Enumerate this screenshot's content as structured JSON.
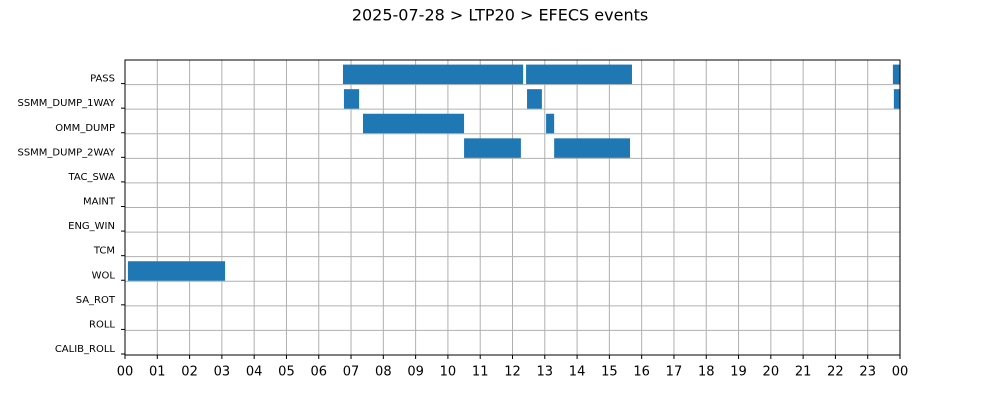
{
  "chart_data": {
    "type": "timeline",
    "title": "2025-07-28 > LTP20 > EFECS events",
    "color": "#1f77b4",
    "grid": true,
    "categories": [
      "PASS",
      "SSMM_DUMP_1WAY",
      "OMM_DUMP",
      "SSMM_DUMP_2WAY",
      "TAC_SWA",
      "MAINT",
      "ENG_WIN",
      "TCM",
      "WOL",
      "SA_ROT",
      "ROLL",
      "CALIB_ROLL"
    ],
    "intervals": [
      [
        [
          6.75,
          12.33
        ],
        [
          12.42,
          15.7
        ],
        [
          23.78,
          24
        ]
      ],
      [
        [
          6.78,
          7.25
        ],
        [
          12.45,
          12.91
        ],
        [
          23.81,
          24
        ]
      ],
      [
        [
          7.37,
          10.5
        ],
        [
          13.04,
          13.29
        ]
      ],
      [
        [
          10.5,
          12.26
        ],
        [
          13.29,
          15.64
        ]
      ],
      [],
      [],
      [],
      [],
      [
        [
          0.09,
          3.1
        ]
      ],
      [],
      [],
      []
    ],
    "xlim": [
      0,
      24
    ],
    "xticks": [
      {
        "value": 0,
        "label": "00"
      },
      {
        "value": 1,
        "label": "01"
      },
      {
        "value": 2,
        "label": "02"
      },
      {
        "value": 3,
        "label": "03"
      },
      {
        "value": 4,
        "label": "04"
      },
      {
        "value": 5,
        "label": "05"
      },
      {
        "value": 6,
        "label": "06"
      },
      {
        "value": 7,
        "label": "07"
      },
      {
        "value": 8,
        "label": "08"
      },
      {
        "value": 9,
        "label": "09"
      },
      {
        "value": 10,
        "label": "10"
      },
      {
        "value": 11,
        "label": "11"
      },
      {
        "value": 12,
        "label": "12"
      },
      {
        "value": 13,
        "label": "13"
      },
      {
        "value": 14,
        "label": "14"
      },
      {
        "value": 15,
        "label": "15"
      },
      {
        "value": 16,
        "label": "16"
      },
      {
        "value": 17,
        "label": "17"
      },
      {
        "value": 18,
        "label": "18"
      },
      {
        "value": 19,
        "label": "19"
      },
      {
        "value": 20,
        "label": "20"
      },
      {
        "value": 21,
        "label": "21"
      },
      {
        "value": 22,
        "label": "22"
      },
      {
        "value": 23,
        "label": "23"
      },
      {
        "value": 24,
        "label": "00"
      }
    ]
  }
}
